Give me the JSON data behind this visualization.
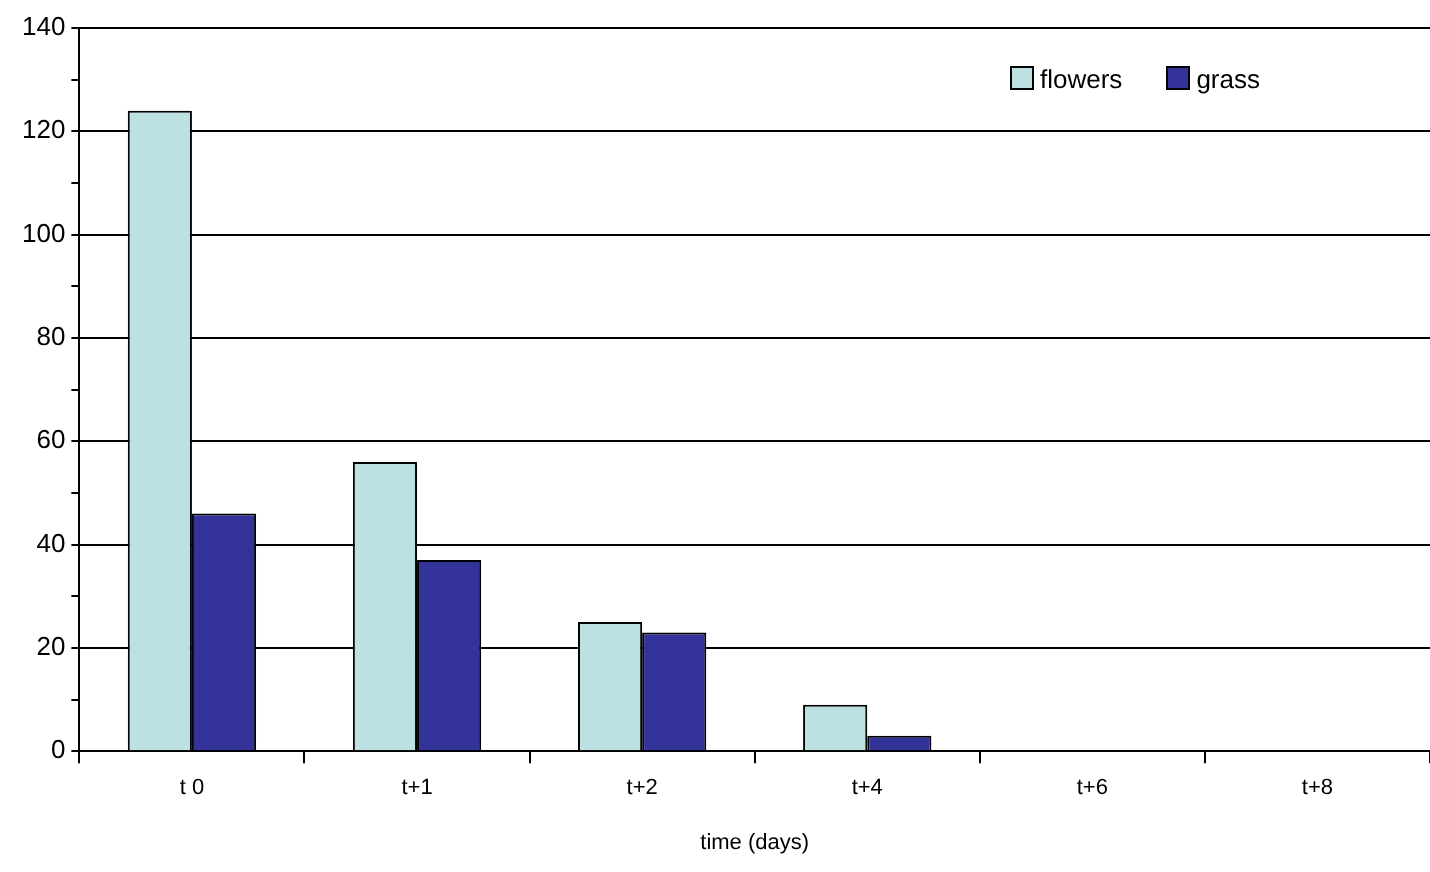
{
  "chart_data": {
    "type": "bar",
    "xlabel": "time (days)",
    "categories": [
      "t 0",
      "t+1",
      "t+2",
      "t+4",
      "t+6",
      "t+8"
    ],
    "series": [
      {
        "name": "flowers",
        "color": "#bde0e3",
        "values": [
          124,
          56,
          25,
          9,
          0,
          0
        ]
      },
      {
        "name": "grass",
        "color": "#333399",
        "values": [
          46,
          37,
          23,
          3,
          0,
          0
        ]
      }
    ],
    "ylim": [
      0,
      140
    ],
    "yticks": [
      0,
      {
        "value": 10,
        "label": null
      },
      20,
      {
        "value": 30,
        "label": null
      },
      40,
      {
        "value": 50,
        "label": null
      },
      60,
      {
        "value": 70,
        "label": null
      },
      80,
      {
        "value": 90,
        "label": null
      },
      100,
      {
        "value": 110,
        "label": null
      },
      120,
      {
        "value": 130,
        "label": null
      },
      140
    ],
    "grid": "y",
    "legend": "top right"
  }
}
